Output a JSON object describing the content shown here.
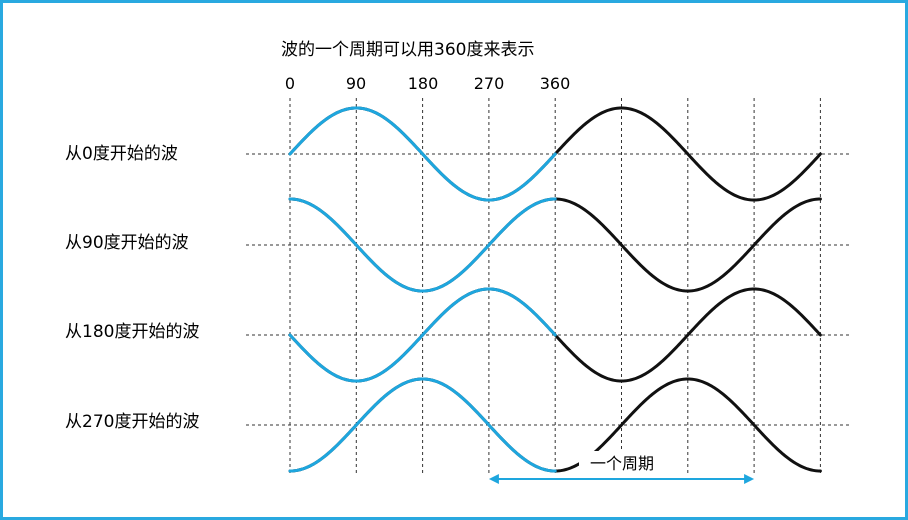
{
  "title": "波的一个周期可以用360度来表示",
  "ticks": [
    "0",
    "90",
    "180",
    "270",
    "360"
  ],
  "rows": [
    {
      "label": "从0度开始的波",
      "start_deg": 0
    },
    {
      "label": "从90度开始的波",
      "start_deg": 90
    },
    {
      "label": "从180度开始的波",
      "start_deg": 180
    },
    {
      "label": "从270度开始的波",
      "start_deg": 270
    }
  ],
  "period_label": "一个周期",
  "colors": {
    "frame": "#29a9e0",
    "highlight": "#1ea6de",
    "rest": "#111111",
    "grid": "#333333"
  }
}
